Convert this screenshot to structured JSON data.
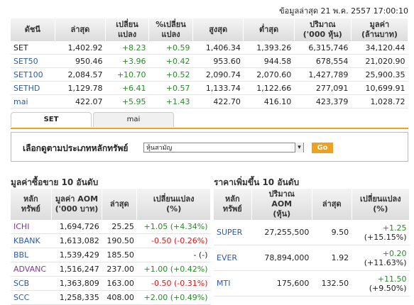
{
  "timestamp": "ข้อมูลล่าสุด 21 พ.ค. 2557 17:00:10",
  "index_table": {
    "headers": [
      [
        "ดัชนี"
      ],
      [
        "ล่าสุด"
      ],
      [
        "เปลี่ยน",
        "แปลง"
      ],
      [
        "%เปลี่ยน",
        "แปลง"
      ],
      [
        "สูงสุด"
      ],
      [
        "ต่ำสุด"
      ],
      [
        "ปริมาณ",
        "('000 หุ้น)"
      ],
      [
        "มูลค่า",
        "(ล้านบาท)"
      ]
    ],
    "rows": [
      [
        "SET",
        "1,402.92",
        "+8.23",
        "+0.59",
        "1,406.34",
        "1,393.26",
        "6,315,746",
        "34,120.44"
      ],
      [
        "SET50",
        "950.46",
        "+3.96",
        "+0.42",
        "953.60",
        "944.58",
        "678,554",
        "21,020.90"
      ],
      [
        "SET100",
        "2,084.57",
        "+10.70",
        "+0.52",
        "2,090.74",
        "2,070.60",
        "1,427,789",
        "25,900.35"
      ],
      [
        "SETHD",
        "1,129.78",
        "+6.41",
        "+0.57",
        "1,133.74",
        "1,122.66",
        "277,091",
        "10,699.91"
      ],
      [
        "mai",
        "422.07",
        "+5.95",
        "+1.43",
        "422.70",
        "416.10",
        "423,379",
        "1,028.72"
      ]
    ]
  },
  "tabs": [
    "SET",
    "mai"
  ],
  "filter": {
    "label": "เลือกดูตามประเภทหลักทรัพย์",
    "selected": "หุ้นสามัญ",
    "button": "Go"
  },
  "top_value": {
    "title": "มูลค่าซื้อขาย 10 อันดับ",
    "headers": [
      [
        "หลัก",
        "ทรัพย์"
      ],
      [
        "มูลค่า AOM",
        "('000 บาท)"
      ],
      [
        "ล่าสุด"
      ],
      [
        "เปลี่ยนแปลง",
        "(%)"
      ]
    ],
    "rows": [
      [
        "ICHI",
        "1,694,726",
        "25.25",
        [
          "+1.05 (+4.34%)"
        ]
      ],
      [
        "KBANK",
        "1,613,082",
        "190.50",
        [
          "-0.50 (-0.26%)"
        ]
      ],
      [
        "BBL",
        "1,539,429",
        "185.50",
        [
          "- (-)"
        ]
      ],
      [
        "ADVANC",
        "1,516,247",
        "237.00",
        [
          "+1.00 (+0.42%)"
        ]
      ],
      [
        "SCB",
        "1,363,809",
        "163.00",
        [
          "-0.50 (-0.31%)"
        ]
      ],
      [
        "SCC",
        "1,258,335",
        "408.00",
        [
          "+2.00 (+0.49%)"
        ]
      ]
    ]
  },
  "top_gainers": {
    "title": "ราคาเพิ่มขึ้น 10 อันดับ",
    "headers": [
      [
        "หลัก",
        "ทรัพย์"
      ],
      [
        "ปริมาณ",
        "AOM",
        "(หุ้น)"
      ],
      [
        "ล่าสุด"
      ],
      [
        "เปลี่ยนแปลง",
        "(%)"
      ]
    ],
    "rows": [
      [
        "SUPER",
        "27,255,500",
        "9.50",
        [
          "+1.25",
          "(+15.15%)"
        ]
      ],
      [
        "EVER",
        "78,894,000",
        "1.92",
        [
          "+0.20",
          "(+11.63%)"
        ]
      ],
      [
        "MTI",
        "175,600",
        "132.50",
        [
          "+11.50",
          "(+9.50%)"
        ]
      ]
    ]
  }
}
